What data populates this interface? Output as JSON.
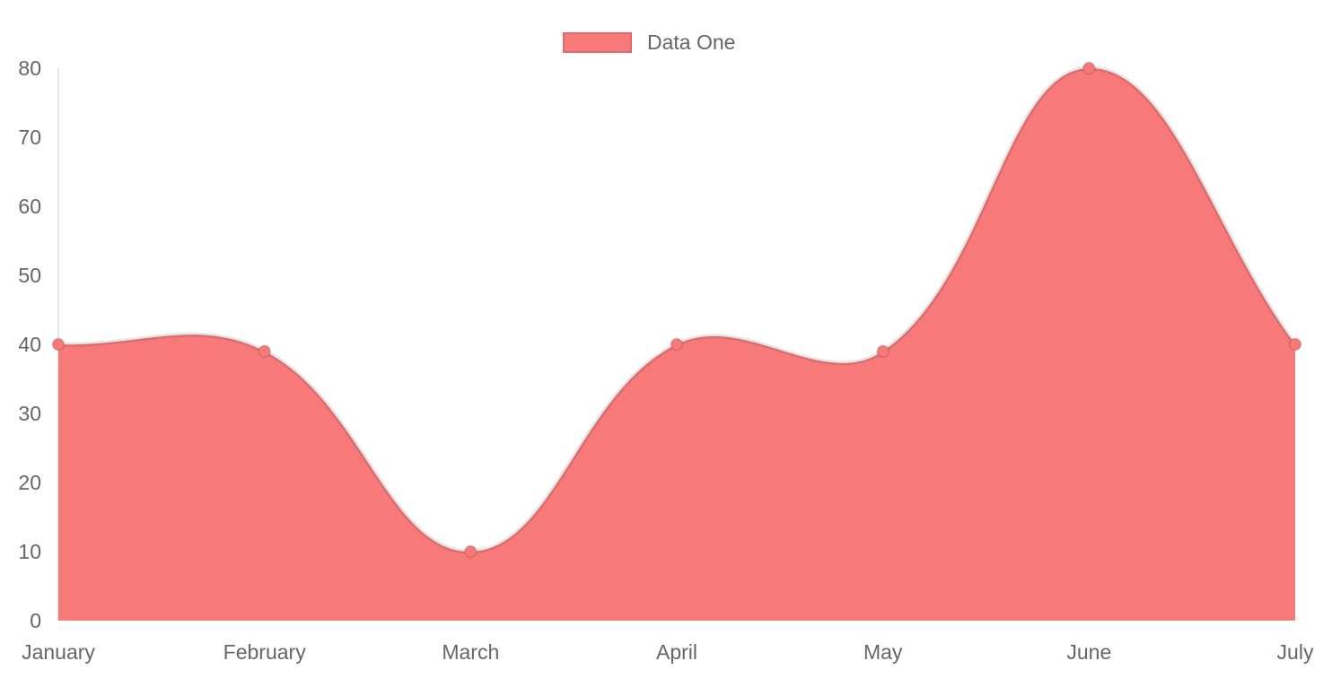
{
  "chart_data": {
    "type": "area",
    "title": "",
    "categories": [
      "January",
      "February",
      "March",
      "April",
      "May",
      "June",
      "July"
    ],
    "series": [
      {
        "name": "Data One",
        "values": [
          40,
          39,
          10,
          40,
          39,
          80,
          40
        ]
      }
    ],
    "xlabel": "",
    "ylabel": "",
    "ylim": [
      0,
      80
    ],
    "ytick_step": 10,
    "yticks": [
      0,
      10,
      20,
      30,
      40,
      50,
      60,
      70,
      80
    ],
    "grid": false,
    "legend_position": "top",
    "line_tension": 0.4,
    "colors": {
      "area_fill": "#f87979",
      "line_stroke": "rgba(0,0,0,0.10)",
      "point_fill": "#f87979",
      "point_border": "rgba(0,0,0,0.10)",
      "axis_line": "rgba(0,0,0,0.10)",
      "tick_text": "#666666",
      "background": "#ffffff"
    }
  },
  "legend": {
    "items": [
      {
        "label": "Data One",
        "swatch_color": "#f87979"
      }
    ]
  }
}
